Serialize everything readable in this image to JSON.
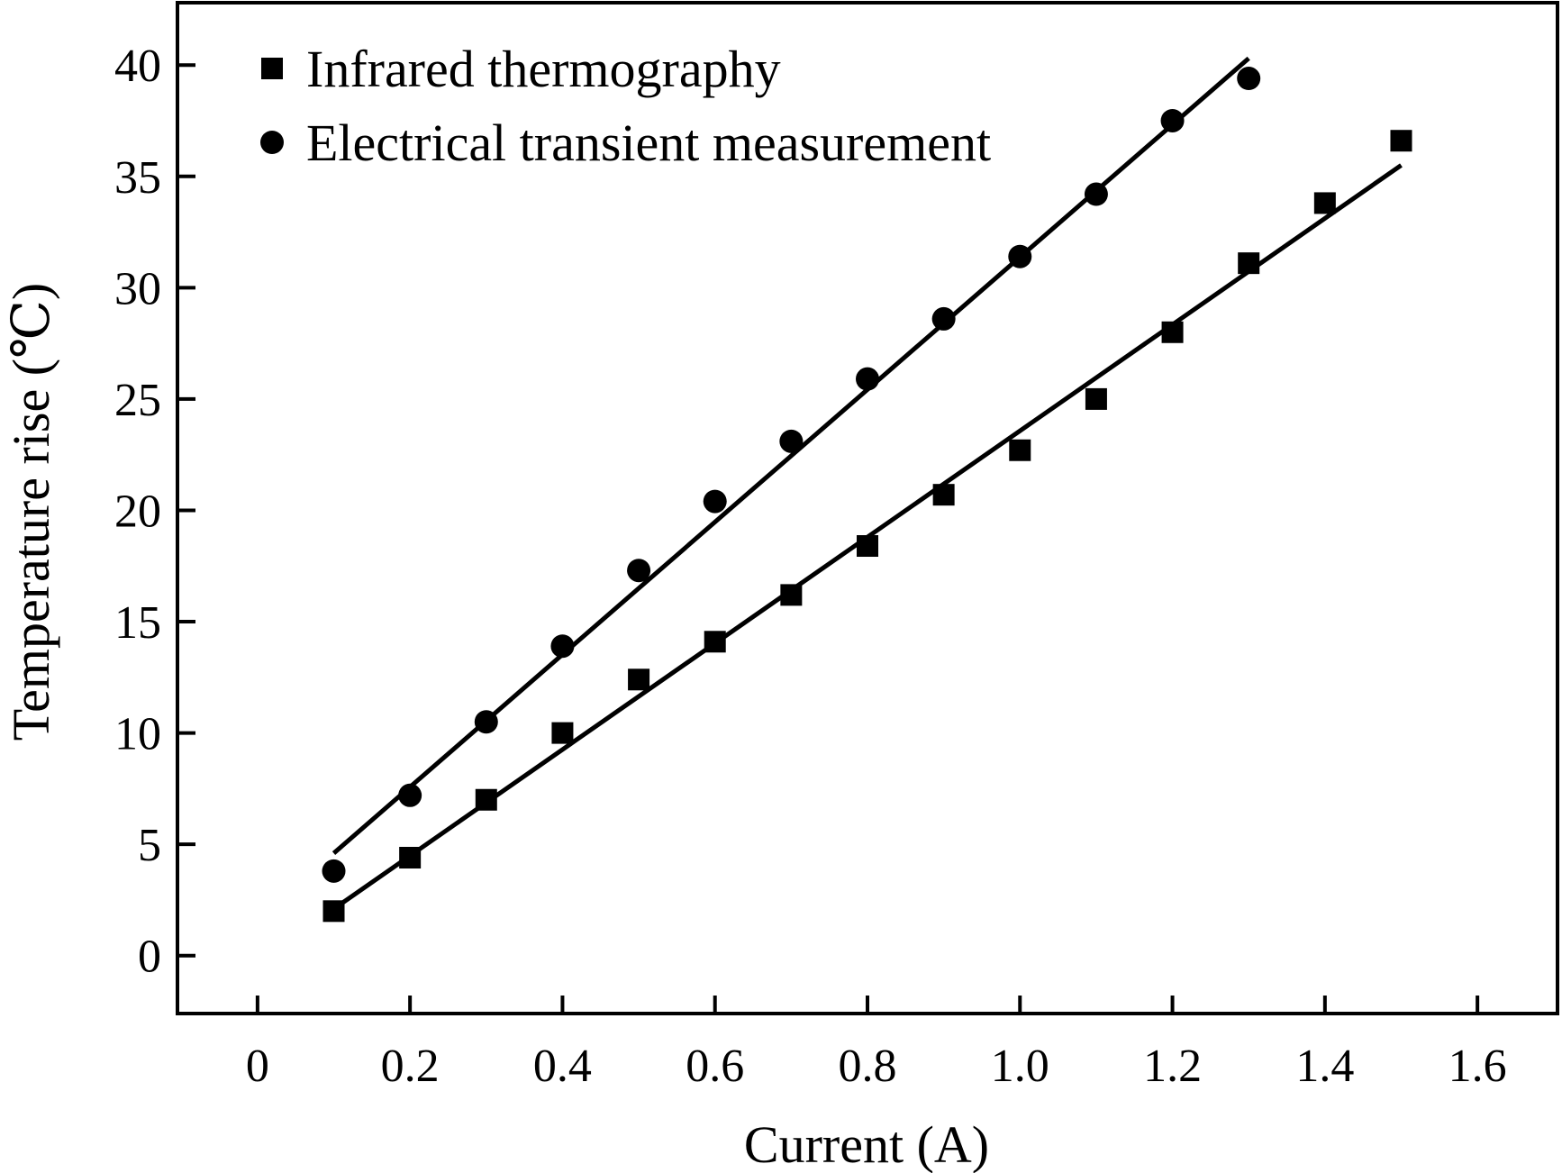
{
  "chart_data": {
    "type": "scatter",
    "xlabel": "Current (A)",
    "ylabel": "Temperature rise (℃)",
    "xlim": [
      -0.105,
      1.705
    ],
    "ylim": [
      -2.6,
      42.8
    ],
    "xticks": [
      0,
      0.2,
      0.4,
      0.6,
      0.8,
      1.0,
      1.2,
      1.4,
      1.6
    ],
    "xtick_labels": [
      "0",
      "0.2",
      "0.4",
      "0.6",
      "0.8",
      "1.0",
      "1.2",
      "1.4",
      "1.6"
    ],
    "yticks": [
      0,
      5,
      10,
      15,
      20,
      25,
      30,
      35,
      40
    ],
    "ytick_labels": [
      "0",
      "5",
      "10",
      "15",
      "20",
      "25",
      "30",
      "35",
      "40"
    ],
    "grid": false,
    "legend_position": "top-left",
    "series": [
      {
        "name": "Infrared thermography",
        "marker": "square",
        "color": "#000000",
        "x": [
          0.1,
          0.2,
          0.3,
          0.4,
          0.5,
          0.6,
          0.7,
          0.8,
          0.9,
          1.0,
          1.1,
          1.2,
          1.3,
          1.4,
          1.5
        ],
        "y": [
          2.0,
          4.4,
          7.0,
          10.0,
          12.4,
          14.1,
          16.2,
          18.4,
          20.7,
          22.7,
          25.0,
          28.0,
          31.1,
          33.8,
          36.6
        ],
        "fit": {
          "x": [
            0.1,
            1.5
          ],
          "y": [
            2.1,
            35.5
          ]
        }
      },
      {
        "name": "Electrical transient measurement",
        "marker": "circle",
        "color": "#000000",
        "x": [
          0.1,
          0.2,
          0.3,
          0.4,
          0.5,
          0.6,
          0.7,
          0.8,
          0.9,
          1.0,
          1.1,
          1.2,
          1.3
        ],
        "y": [
          3.8,
          7.2,
          10.5,
          13.9,
          17.3,
          20.4,
          23.1,
          25.9,
          28.6,
          31.4,
          34.2,
          37.5,
          39.4
        ],
        "fit": {
          "x": [
            0.1,
            1.3
          ],
          "y": [
            4.6,
            40.3
          ]
        }
      }
    ]
  }
}
